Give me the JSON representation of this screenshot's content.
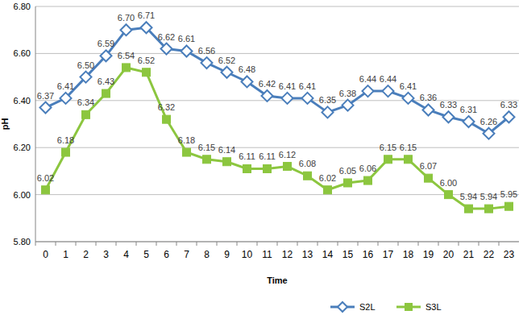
{
  "chart_data": {
    "type": "line",
    "x_label": "Time",
    "y_label": "pH",
    "categories": [
      "0",
      "1",
      "2",
      "3",
      "4",
      "5",
      "6",
      "7",
      "8",
      "9",
      "10",
      "11",
      "12",
      "13",
      "14",
      "15",
      "16",
      "17",
      "18",
      "19",
      "20",
      "21",
      "22",
      "23"
    ],
    "series": [
      {
        "name": "S2L",
        "color": "#4a7ebb",
        "marker": "diamond",
        "line_style": "solid",
        "values": [
          6.37,
          6.41,
          6.5,
          6.59,
          6.7,
          6.71,
          6.62,
          6.61,
          6.56,
          6.52,
          6.48,
          6.42,
          6.41,
          6.41,
          6.35,
          6.38,
          6.44,
          6.44,
          6.41,
          6.36,
          6.33,
          6.31,
          6.26,
          6.33
        ],
        "value_labels": [
          "6.37",
          "6.41",
          "6.50",
          "6.59",
          "6.70",
          "6.71",
          "6.62",
          "6.61",
          "6.56",
          "6.52",
          "6.48",
          "6.42",
          "6.41",
          "6.41",
          "6.35",
          "6.38",
          "6.44",
          "6.44",
          "6.41",
          "6.36",
          "6.33",
          "6.31",
          "6.26",
          "6.33"
        ]
      },
      {
        "name": "S3L",
        "color": "#8cc63f",
        "marker": "square",
        "line_style": "solid",
        "values": [
          6.02,
          6.18,
          6.34,
          6.43,
          6.54,
          6.52,
          6.32,
          6.18,
          6.15,
          6.14,
          6.11,
          6.11,
          6.12,
          6.08,
          6.02,
          6.05,
          6.06,
          6.15,
          6.15,
          6.07,
          6.0,
          5.94,
          5.94,
          5.95
        ],
        "value_labels": [
          "6.02",
          "6.18",
          "6.34",
          "6.43",
          "6.54",
          "6.52",
          "6.32",
          "6.18",
          "6.15",
          "6.14",
          "6.11",
          "6.11",
          "6.12",
          "6.08",
          "6.02",
          "6.05",
          "6.06",
          "6.15",
          "6.15",
          "6.07",
          "6.00",
          "5.94",
          "5.94",
          "5.95"
        ]
      }
    ],
    "ylim": [
      5.8,
      6.8
    ],
    "yticks": [
      {
        "value": 5.8,
        "label": "5.80"
      },
      {
        "value": 6.0,
        "label": "6.00"
      },
      {
        "value": 6.2,
        "label": "6.20"
      },
      {
        "value": 6.4,
        "label": "6.40"
      },
      {
        "value": 6.6,
        "label": "6.60"
      },
      {
        "value": 6.8,
        "label": "6.80"
      }
    ],
    "grid": true,
    "data_labels": true,
    "legend": "bottom"
  }
}
